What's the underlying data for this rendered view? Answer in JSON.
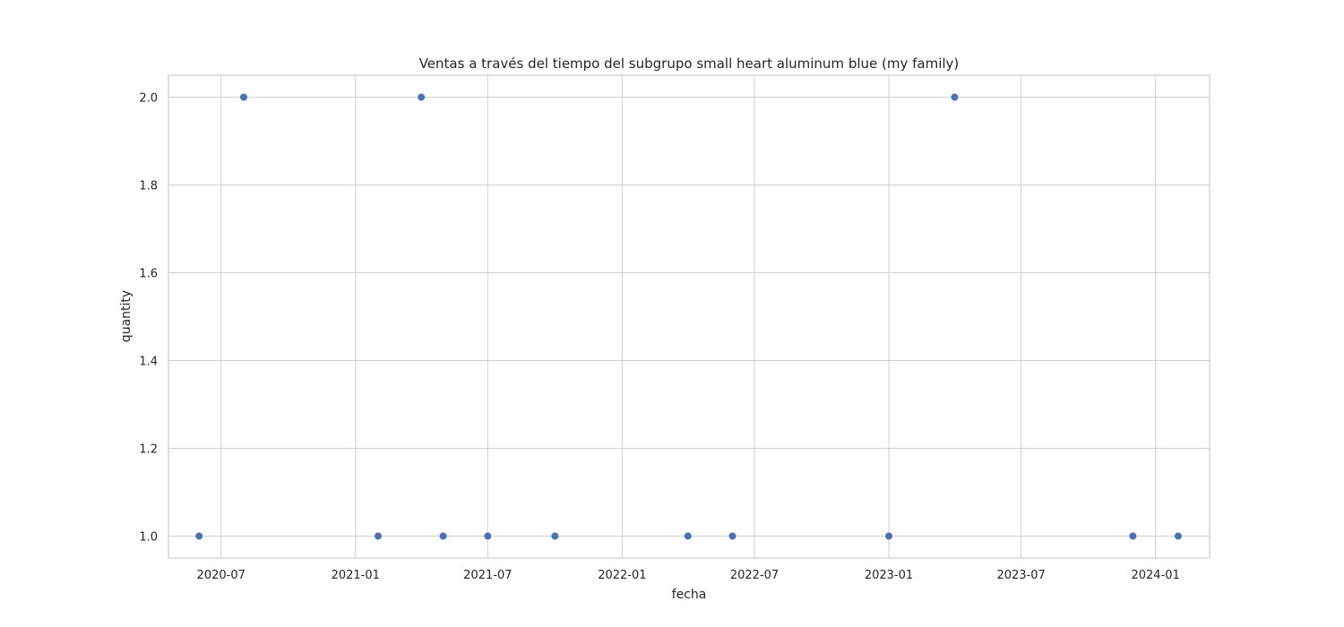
{
  "chart_data": {
    "type": "scatter",
    "title": "Ventas a través del tiempo del subgrupo small heart aluminum blue (my family)",
    "xlabel": "fecha",
    "ylabel": "quantity",
    "grid": true,
    "x_type": "date",
    "xlim": [
      "2020-04-20",
      "2024-03-15"
    ],
    "ylim": [
      0.95,
      2.05
    ],
    "xticks": [
      "2020-07-01",
      "2021-01-01",
      "2021-07-01",
      "2022-01-01",
      "2022-07-01",
      "2023-01-01",
      "2023-07-01",
      "2024-01-01"
    ],
    "xtick_labels": [
      "2020-07",
      "2021-01",
      "2021-07",
      "2022-01",
      "2022-07",
      "2023-01",
      "2023-07",
      "2024-01"
    ],
    "yticks": [
      1.0,
      1.2,
      1.4,
      1.6,
      1.8,
      2.0
    ],
    "ytick_labels": [
      "1.0",
      "1.2",
      "1.4",
      "1.6",
      "1.8",
      "2.0"
    ],
    "marker_color": "#4c72b0",
    "series": [
      {
        "points": [
          {
            "x": "2020-06-01",
            "y": 1
          },
          {
            "x": "2020-08-01",
            "y": 2
          },
          {
            "x": "2021-02-01",
            "y": 1
          },
          {
            "x": "2021-04-01",
            "y": 2
          },
          {
            "x": "2021-05-01",
            "y": 1
          },
          {
            "x": "2021-07-01",
            "y": 1
          },
          {
            "x": "2021-10-01",
            "y": 1
          },
          {
            "x": "2022-04-01",
            "y": 1
          },
          {
            "x": "2022-06-01",
            "y": 1
          },
          {
            "x": "2023-01-01",
            "y": 1
          },
          {
            "x": "2023-04-01",
            "y": 2
          },
          {
            "x": "2023-12-01",
            "y": 1
          },
          {
            "x": "2024-02-01",
            "y": 1
          }
        ]
      }
    ]
  }
}
